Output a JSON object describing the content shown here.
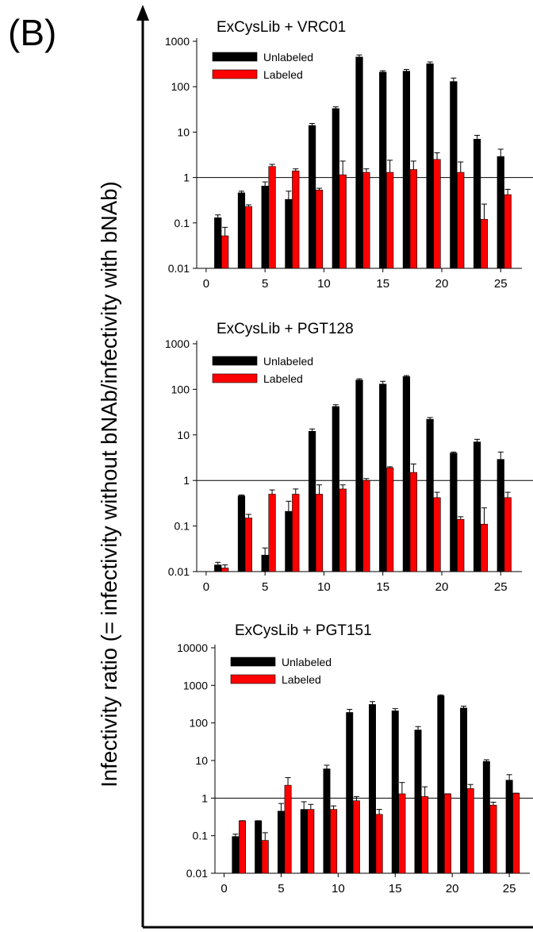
{
  "figure": {
    "panel_label": "(B)",
    "shared_ylabel": "Infectivity ratio (= infectivity without bNAb/infectivity with bNAb)"
  },
  "colors": {
    "unlabeled": "#000000",
    "labeled": "#ff0000"
  },
  "chart_data": [
    {
      "type": "bar",
      "title": "ExCysLib + VRC01",
      "yscale": "log",
      "ylim": [
        0.01,
        1000
      ],
      "yticks": [
        0.01,
        0.1,
        1,
        10,
        100,
        1000
      ],
      "ytick_labels": [
        "0.01",
        "0.1",
        "1",
        "10",
        "100",
        "1000"
      ],
      "xlim": [
        -0.8,
        26.8
      ],
      "xticks": [
        0,
        5,
        10,
        15,
        20,
        25
      ],
      "xtick_labels": [
        "0",
        "5",
        "10",
        "15",
        "20",
        "25"
      ],
      "reference_line": 1,
      "legend_position": "top-left",
      "series": [
        {
          "name": "Unlabeled",
          "x": [
            1,
            3,
            5,
            7,
            9,
            11,
            13,
            15,
            17,
            19,
            21,
            23,
            25
          ],
          "values": [
            0.13,
            0.46,
            0.65,
            0.33,
            14,
            33,
            450,
            210,
            220,
            320,
            130,
            7,
            2.9
          ],
          "errors": [
            0.15,
            0.5,
            0.8,
            0.5,
            15.5,
            36,
            500,
            225,
            240,
            350,
            155,
            8.5,
            4.2
          ]
        },
        {
          "name": "Labeled",
          "x": [
            1.6,
            3.6,
            5.6,
            7.6,
            9.6,
            11.6,
            13.6,
            15.6,
            17.6,
            19.6,
            21.6,
            23.6,
            25.6
          ],
          "values": [
            0.052,
            0.23,
            1.75,
            1.4,
            0.53,
            1.15,
            1.3,
            1.3,
            1.5,
            2.5,
            1.3,
            0.12,
            0.42
          ],
          "errors": [
            0.08,
            0.25,
            1.95,
            1.55,
            0.58,
            2.3,
            1.55,
            2.4,
            2.3,
            3.5,
            2.2,
            0.26,
            0.55
          ]
        }
      ]
    },
    {
      "type": "bar",
      "title": "ExCysLib + PGT128",
      "yscale": "log",
      "ylim": [
        0.01,
        1000
      ],
      "yticks": [
        0.01,
        0.1,
        1,
        10,
        100,
        1000
      ],
      "ytick_labels": [
        "0.01",
        "0.1",
        "1",
        "10",
        "100",
        "1000"
      ],
      "xlim": [
        -0.8,
        26.8
      ],
      "xticks": [
        0,
        5,
        10,
        15,
        20,
        25
      ],
      "xtick_labels": [
        "0",
        "5",
        "10",
        "15",
        "20",
        "25"
      ],
      "reference_line": 1,
      "legend_position": "top-left",
      "series": [
        {
          "name": "Unlabeled",
          "x": [
            1,
            3,
            5,
            7,
            9,
            11,
            13,
            15,
            17,
            19,
            21,
            23,
            25
          ],
          "values": [
            0.014,
            0.46,
            0.023,
            0.21,
            12,
            42,
            160,
            130,
            190,
            22,
            4,
            7,
            2.9
          ],
          "errors": [
            0.016,
            0.48,
            0.033,
            0.35,
            13.5,
            46,
            170,
            150,
            200,
            24,
            4.2,
            8,
            4.2
          ]
        },
        {
          "name": "Labeled",
          "x": [
            1.6,
            3.6,
            5.6,
            7.6,
            9.6,
            11.6,
            13.6,
            15.6,
            17.6,
            19.6,
            21.6,
            23.6,
            25.6
          ],
          "values": [
            0.012,
            0.15,
            0.5,
            0.5,
            0.5,
            0.65,
            1.0,
            1.9,
            1.5,
            0.42,
            0.14,
            0.11,
            0.42
          ],
          "errors": [
            0.014,
            0.18,
            0.62,
            0.65,
            0.8,
            0.8,
            1.1,
            2.0,
            2.3,
            0.55,
            0.16,
            0.25,
            0.55
          ]
        }
      ]
    },
    {
      "type": "bar",
      "title": "ExCysLib + PGT151",
      "yscale": "log",
      "ylim": [
        0.01,
        10000
      ],
      "yticks": [
        0.01,
        0.1,
        1,
        10,
        100,
        1000,
        10000
      ],
      "ytick_labels": [
        "0.01",
        "0.1",
        "1",
        "10",
        "100",
        "1000",
        "10000"
      ],
      "xlim": [
        -0.8,
        26.8
      ],
      "xticks": [
        0,
        5,
        10,
        15,
        20,
        25
      ],
      "xtick_labels": [
        "0",
        "5",
        "10",
        "15",
        "20",
        "25"
      ],
      "reference_line": 1,
      "legend_position": "top-left",
      "series": [
        {
          "name": "Unlabeled",
          "x": [
            1,
            3,
            5,
            7,
            9,
            11,
            13,
            15,
            17,
            19,
            21,
            23,
            25
          ],
          "values": [
            0.095,
            0.25,
            0.45,
            0.5,
            6,
            190,
            310,
            210,
            65,
            530,
            250,
            9.5,
            3
          ],
          "errors": [
            0.11,
            0.25,
            0.72,
            0.8,
            7.5,
            230,
            370,
            240,
            80,
            560,
            280,
            10.5,
            4.2
          ]
        },
        {
          "name": "Labeled",
          "x": [
            1.6,
            3.6,
            5.6,
            7.6,
            9.6,
            11.6,
            13.6,
            15.6,
            17.6,
            19.6,
            21.6,
            23.6,
            25.6
          ],
          "values": [
            0.25,
            0.075,
            2.2,
            0.5,
            0.5,
            0.85,
            0.37,
            1.3,
            1.1,
            1.3,
            1.8,
            0.65,
            1.35
          ],
          "errors": [
            0.25,
            0.12,
            3.5,
            0.68,
            0.62,
            1.1,
            0.5,
            2.6,
            2.0,
            1.3,
            2.3,
            0.78,
            1.35
          ]
        }
      ]
    }
  ]
}
